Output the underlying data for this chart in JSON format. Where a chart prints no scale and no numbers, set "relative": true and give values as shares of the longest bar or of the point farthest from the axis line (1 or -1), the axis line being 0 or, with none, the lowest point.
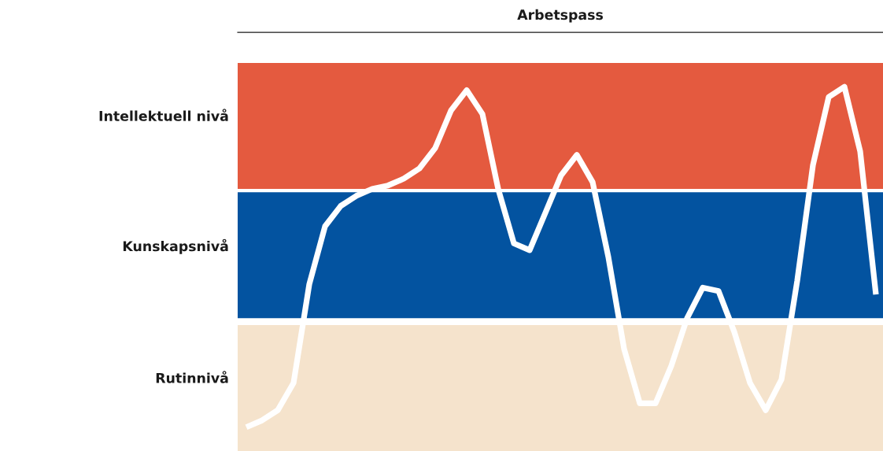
{
  "chart_data": {
    "type": "line",
    "xlabel": "Arbetspass",
    "relative": true,
    "tick_labels": "y",
    "line_style": "solid",
    "categories": [
      null,
      null,
      null,
      null,
      null,
      null,
      null,
      null,
      null,
      null,
      null,
      null,
      null,
      null,
      null,
      null,
      null,
      null,
      null,
      null,
      null,
      null,
      null,
      null,
      null,
      null,
      null,
      null,
      null,
      null,
      null,
      null,
      null,
      null,
      null,
      null,
      null,
      null,
      null,
      null,
      null
    ],
    "series": [
      {
        "color": "#ffffff",
        "values": [
          0,
          0.02,
          0.05,
          0.13,
          0.42,
          0.59,
          0.65,
          0.68,
          0.7,
          0.71,
          0.73,
          0.76,
          0.82,
          0.93,
          0.99,
          0.92,
          0.7,
          0.54,
          0.52,
          0.63,
          0.74,
          0.8,
          0.72,
          0.5,
          0.23,
          0.07,
          0.07,
          0.18,
          0.32,
          0.41,
          0.4,
          0.28,
          0.13,
          0.05,
          0.14,
          0.43,
          0.77,
          0.97,
          1,
          0.81,
          0.39
        ]
      }
    ],
    "bands": [
      {
        "axis": "y",
        "from": 0.7,
        "to": 1.07,
        "label": "Intellektuell nivå",
        "color": "#e45a3f"
      },
      {
        "axis": "y",
        "from": 0.32,
        "to": 0.69,
        "label": "Kunskapsnivå",
        "color": "#0353a0"
      },
      {
        "axis": "y",
        "from": -0.07,
        "to": 0.3,
        "label": "Rutinnivå",
        "color": "#f5e3cc"
      }
    ]
  }
}
